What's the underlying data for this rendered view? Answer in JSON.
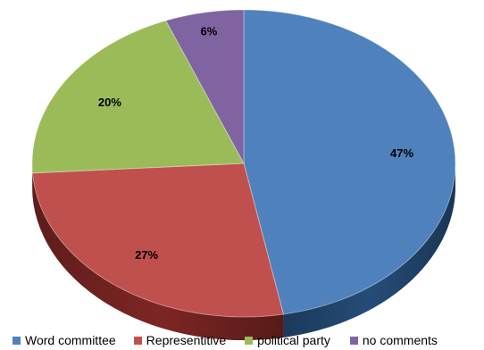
{
  "chart_data": {
    "type": "pie",
    "title": "",
    "style": "3d",
    "legend_position": "bottom",
    "slices": [
      {
        "label": "Word committee",
        "value": 47,
        "display": "47%",
        "color": "#4F81BD",
        "side_color": "#254C78"
      },
      {
        "label": "Representitive",
        "value": 27,
        "display": "27%",
        "color": "#C0504D",
        "side_color": "#7D2624"
      },
      {
        "label": "political party",
        "value": 20,
        "display": "20%",
        "color": "#9BBB59",
        "side_color": "#627A33"
      },
      {
        "label": "no comments",
        "value": 6,
        "display": "6%",
        "color": "#8064A2",
        "side_color": "#4E3B66"
      }
    ]
  }
}
